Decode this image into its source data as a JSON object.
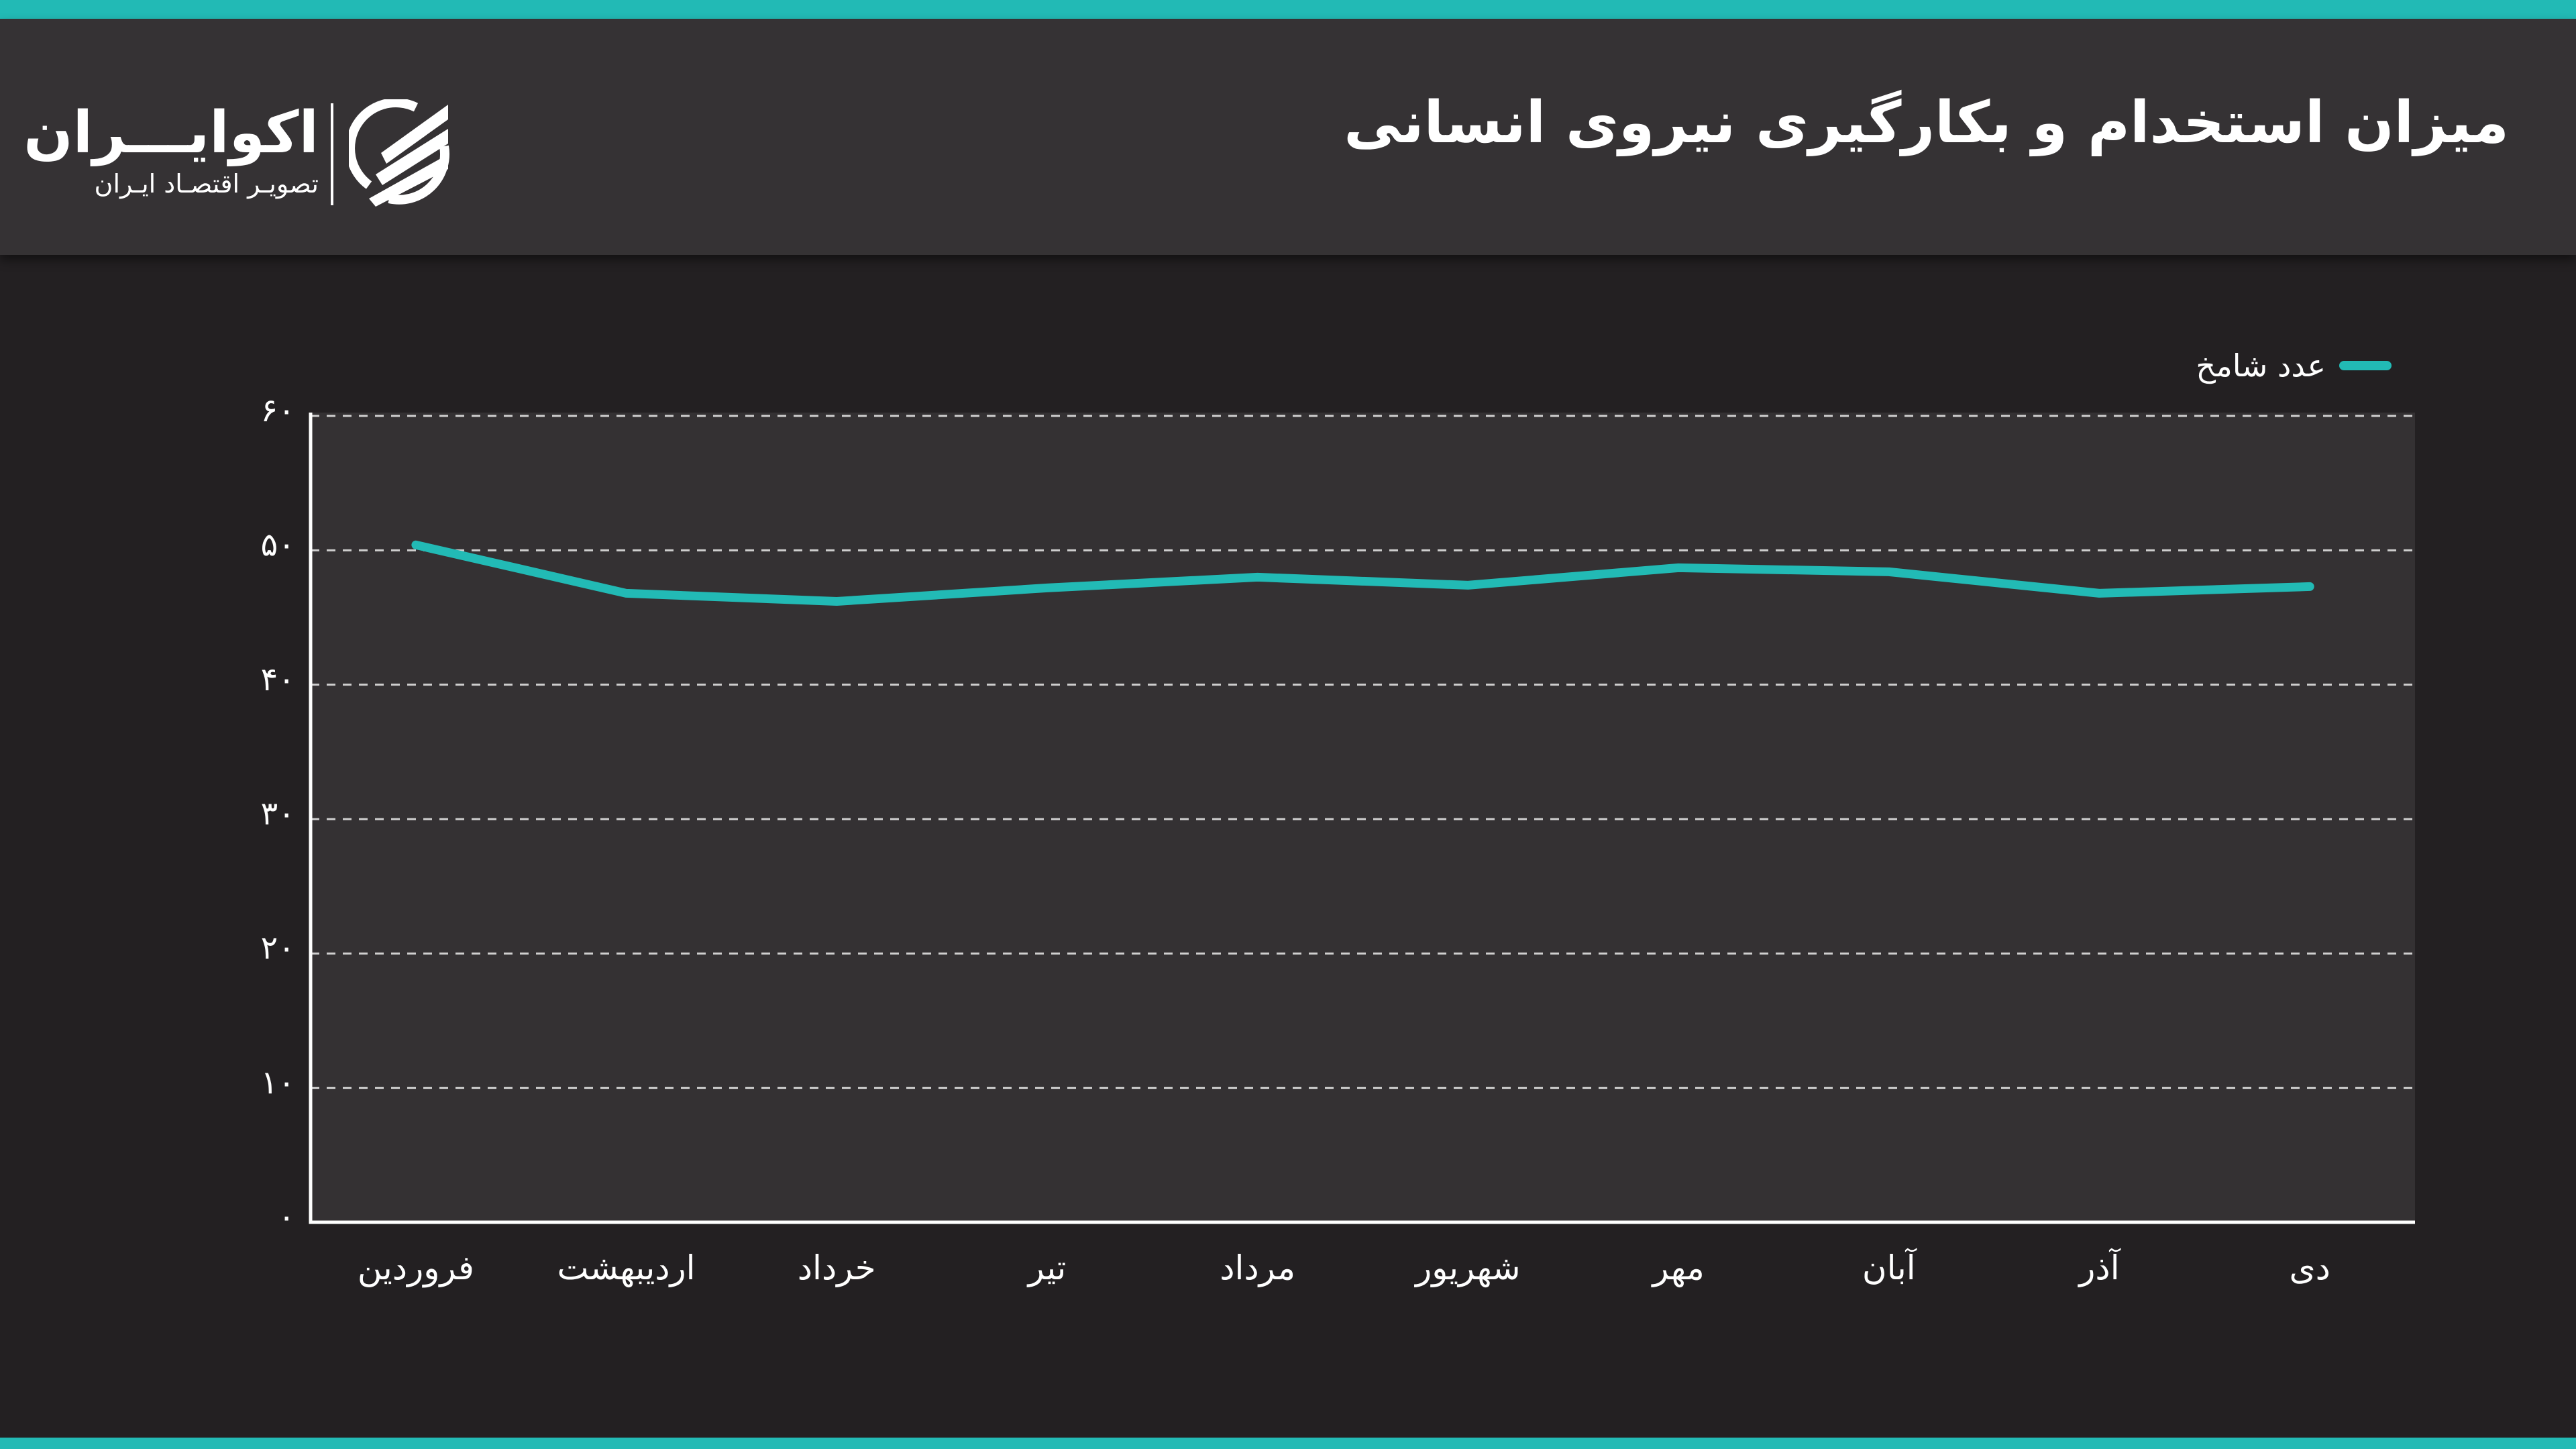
{
  "header": {
    "title": "میزان استخدام و بکارگیری نیروی انسانی",
    "logo": {
      "name": "اکوایـــران",
      "tagline": "تصویـر اقتصـاد ایـران",
      "icon": "ecoiran-logo-mark"
    }
  },
  "colors": {
    "accent": "#22bab5",
    "header_bg": "#353234",
    "page_bg": "#232022",
    "plot_bg": "#343133",
    "text": "#ffffff",
    "grid": "#cfcfcf"
  },
  "legend": {
    "items": [
      {
        "label": "عدد شامخ",
        "color": "#22bab5"
      }
    ]
  },
  "axes": {
    "y_ticks": [
      "۶۰",
      "۵۰",
      "۴۰",
      "۳۰",
      "۲۰",
      "۱۰",
      "۰"
    ],
    "x_ticks": [
      "فروردین",
      "اردیبهشت",
      "خرداد",
      "تیر",
      "مرداد",
      "شهریور",
      "مهر",
      "آبان",
      "آذر",
      "دی"
    ]
  },
  "chart_data": {
    "type": "line",
    "title": "میزان استخدام و بکارگیری نیروی انسانی",
    "xlabel": "",
    "ylabel": "",
    "categories": [
      "فروردین",
      "اردیبهشت",
      "خرداد",
      "تیر",
      "مرداد",
      "شهریور",
      "مهر",
      "آبان",
      "آذر",
      "دی"
    ],
    "series": [
      {
        "name": "عدد شامخ",
        "color": "#22bab5",
        "values": [
          50.4,
          46.8,
          46.2,
          47.2,
          48.0,
          47.4,
          48.7,
          48.4,
          46.8,
          47.3
        ]
      }
    ],
    "ylim": [
      0,
      60
    ],
    "yticks": [
      0,
      10,
      20,
      30,
      40,
      50,
      60
    ],
    "grid": true,
    "grid_style": "dashed",
    "legend_position": "top-right"
  }
}
